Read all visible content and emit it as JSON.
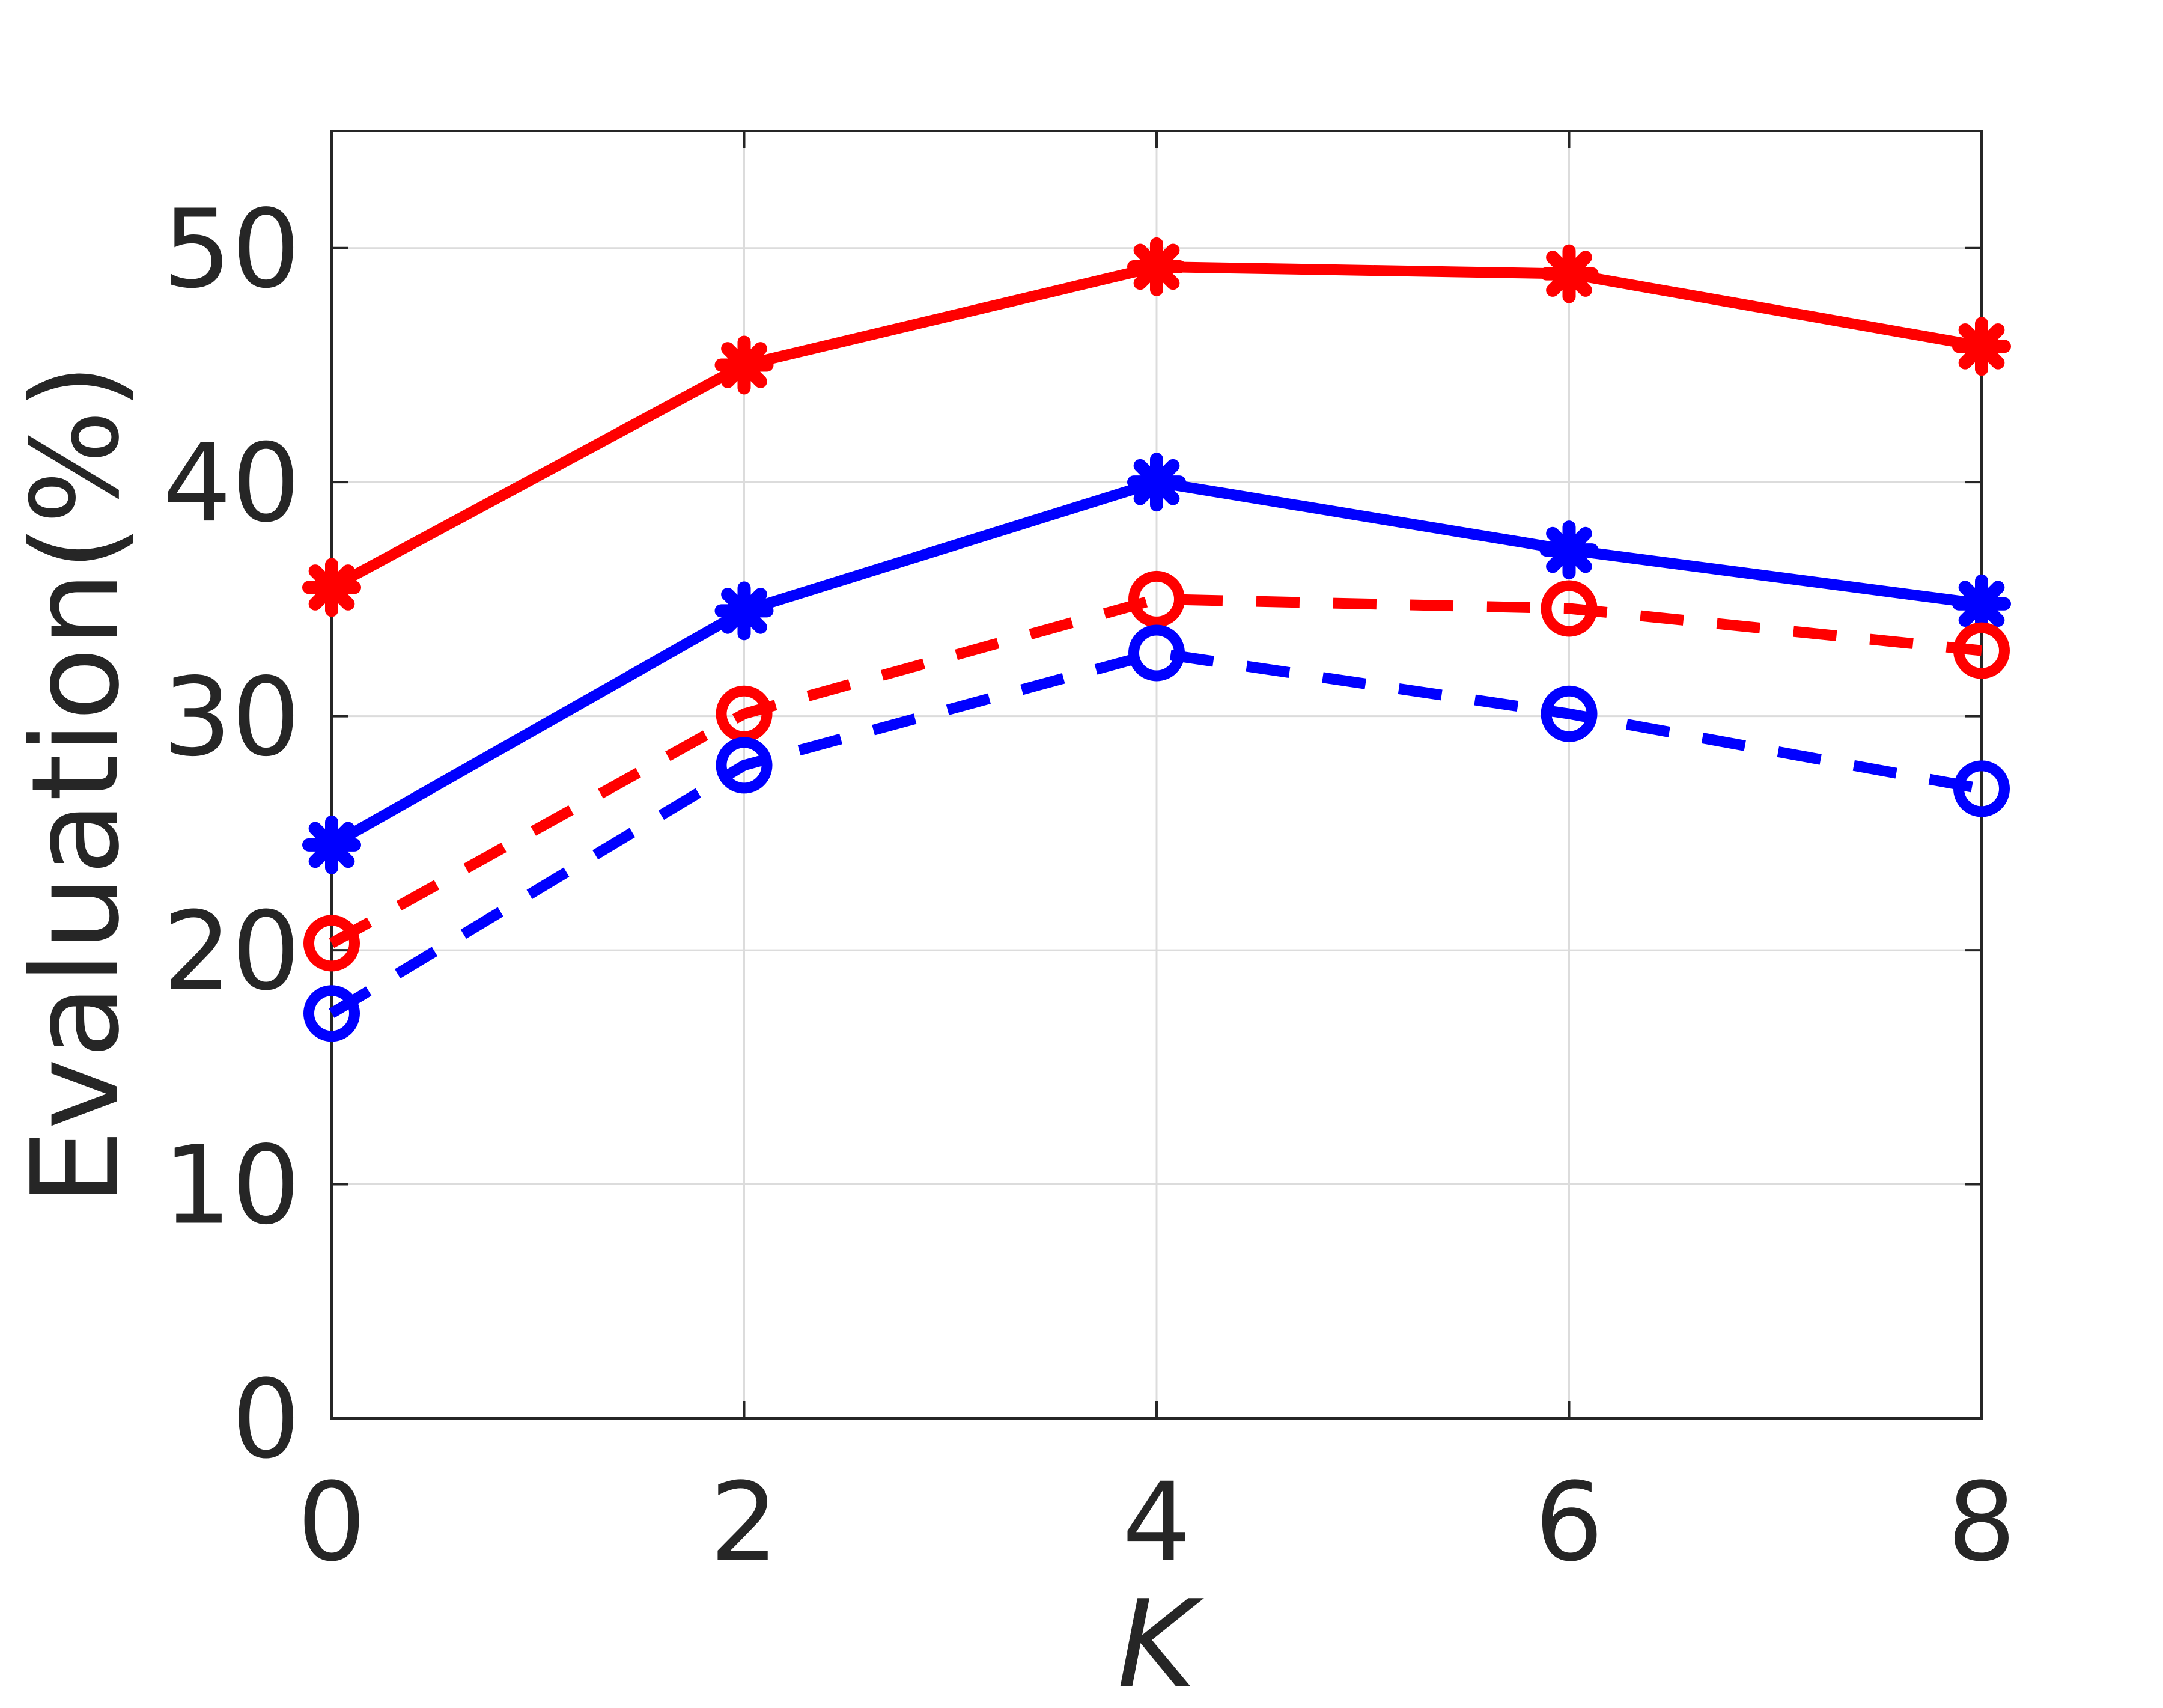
{
  "chart_data": {
    "type": "line",
    "title": "",
    "xlabel": "K",
    "ylabel": "Evaluation(%)",
    "xlim": [
      0,
      8
    ],
    "ylim": [
      0,
      55
    ],
    "xticks": [
      0,
      2,
      4,
      6,
      8
    ],
    "yticks": [
      0,
      10,
      20,
      30,
      40,
      50
    ],
    "xtick_labels": [
      "0",
      "2",
      "4",
      "6",
      "8"
    ],
    "ytick_labels": [
      "0",
      "10",
      "20",
      "30",
      "40",
      "50"
    ],
    "grid": true,
    "legend": "none",
    "x": [
      0,
      2,
      4,
      6,
      8
    ],
    "series": [
      {
        "values": [
          35.5,
          45.0,
          49.2,
          48.9,
          45.8
        ],
        "color": "#ff0000",
        "line": "solid",
        "marker": "filled-star"
      },
      {
        "values": [
          24.5,
          34.5,
          40.0,
          37.1,
          34.8
        ],
        "color": "#0000ff",
        "line": "solid",
        "marker": "filled-star"
      },
      {
        "values": [
          20.3,
          30.1,
          35.0,
          34.6,
          32.8
        ],
        "color": "#ff0000",
        "line": "dashed",
        "marker": "open-circle"
      },
      {
        "values": [
          17.3,
          27.9,
          32.7,
          30.1,
          26.9
        ],
        "color": "#0000ff",
        "line": "dashed",
        "marker": "open-circle"
      }
    ]
  }
}
